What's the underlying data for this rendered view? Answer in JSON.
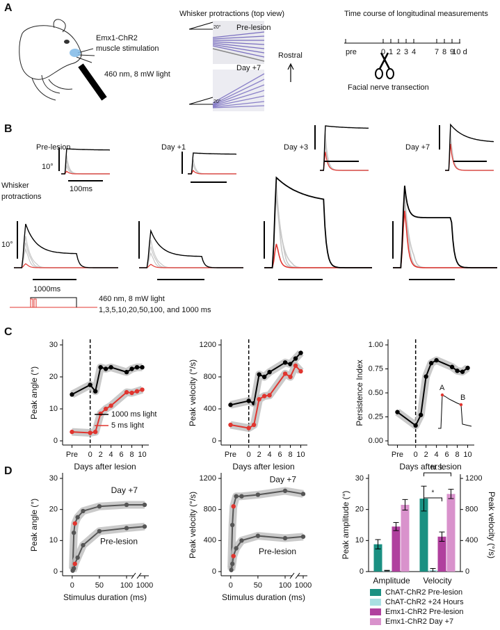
{
  "panel_labels": [
    "A",
    "B",
    "C",
    "D"
  ],
  "panel_a": {
    "mouse": {
      "lines": [
        "Emx1-ChR2",
        "muscle stimulation"
      ],
      "light": "460 nm, 8 mW light"
    },
    "whiskers": {
      "title": "Whisker protractions (top view)",
      "images": [
        "Pre-lesion",
        "Day +7"
      ],
      "angle": "20°",
      "direction": "Rostral"
    },
    "timeline": {
      "title": "Time course of longitudinal measurements",
      "ticks": [
        "pre",
        "0",
        "1",
        "2",
        "3",
        "4",
        "7",
        "8",
        "9",
        "10 d"
      ],
      "event": "Facial nerve transection"
    }
  },
  "panel_b": {
    "conditions": [
      "Pre-lesion",
      "Day +1",
      "Day +3",
      "Day +7"
    ],
    "inset_scale": {
      "angle": "10°",
      "time": "100ms"
    },
    "row_label": [
      "Whisker",
      "protractions"
    ],
    "main_scale": {
      "angle": "10°",
      "time": "1000ms"
    },
    "stimulus": [
      "460 nm, 8 mW light",
      "1,3,5,10,20,50,100, and 1000 ms"
    ]
  },
  "chart_data": [
    {
      "type": "line",
      "x_label": "Days after lesion",
      "y_label": "Peak angle (°)",
      "x": [
        -3.5,
        0,
        1,
        2,
        3,
        4,
        7,
        8,
        9,
        10
      ],
      "xlim": [
        -4.5,
        11
      ],
      "xticks": [
        {
          "value": -3.5,
          "label": "Pre"
        },
        0,
        2,
        4,
        6,
        8,
        10
      ],
      "ylim": [
        0,
        30
      ],
      "yticks": [
        0,
        10,
        20,
        30
      ],
      "vline": 0,
      "band_color": "#bdbdbd",
      "legend": "lower right",
      "series": [
        {
          "name": "1000 ms light",
          "color": "#000000",
          "values": [
            14.5,
            17.5,
            15.5,
            23,
            22.5,
            23,
            21.5,
            22.5,
            23,
            23
          ]
        },
        {
          "name": "5 ms light",
          "color": "#e0352f",
          "values": [
            2.8,
            2.5,
            2.8,
            8.5,
            10,
            11,
            15.2,
            15,
            15.5,
            16
          ]
        }
      ]
    },
    {
      "type": "line",
      "x_label": "Days after lesion",
      "y_label": "Peak velocity (°/s)",
      "x": [
        -3.5,
        0,
        1,
        2,
        3,
        4,
        7,
        8,
        9,
        10
      ],
      "xlim": [
        -4.5,
        11
      ],
      "xticks": [
        {
          "value": -3.5,
          "label": "Pre"
        },
        0,
        2,
        4,
        6,
        8,
        10
      ],
      "ylim": [
        0,
        1200
      ],
      "yticks": [
        0,
        400,
        800,
        1200
      ],
      "vline": 0,
      "band_color": "#bdbdbd",
      "series": [
        {
          "name": "1000 ms light",
          "color": "#000000",
          "values": [
            450,
            500,
            470,
            830,
            800,
            860,
            980,
            960,
            1030,
            1100
          ]
        },
        {
          "name": "5 ms light",
          "color": "#e0352f",
          "values": [
            200,
            160,
            200,
            520,
            560,
            570,
            840,
            800,
            940,
            870
          ]
        }
      ]
    },
    {
      "type": "line",
      "x_label": "Days after lesion",
      "y_label": "Persistence Index",
      "x": [
        -3.5,
        0,
        1,
        2,
        3,
        4,
        7,
        8,
        9,
        10
      ],
      "xlim": [
        -4.5,
        11
      ],
      "xticks": [
        {
          "value": -3.5,
          "label": "Pre"
        },
        0,
        2,
        4,
        6,
        8,
        10
      ],
      "ylim": [
        0,
        1
      ],
      "yticks": [
        {
          "value": 0,
          "label": "0.00"
        },
        {
          "value": 0.25,
          "label": "0.25"
        },
        {
          "value": 0.5,
          "label": "0.50"
        },
        {
          "value": 0.75,
          "label": "0.75"
        },
        {
          "value": 1,
          "label": "1.00"
        }
      ],
      "vline": 0,
      "band_color": "#bdbdbd",
      "inset_labels": [
        "A",
        "B"
      ],
      "series": [
        {
          "color": "#000000",
          "values": [
            0.3,
            0.16,
            0.27,
            0.67,
            0.81,
            0.84,
            0.77,
            0.73,
            0.72,
            0.76
          ]
        }
      ]
    },
    {
      "type": "line",
      "x_label": "Stimulus duration (ms)",
      "y_label": "Peak angle (°)",
      "x": [
        1,
        3,
        5,
        10,
        20,
        50,
        100,
        1000
      ],
      "xlim": [
        -10,
        1000
      ],
      "axis_break": true,
      "xticks": [
        0,
        50,
        100,
        1000
      ],
      "ylim": [
        0,
        30
      ],
      "yticks": [
        0,
        10,
        20,
        30
      ],
      "band_color": "#bdbdbd",
      "legend": "inline",
      "highlight": {
        "x": 5,
        "color": "#e0352f"
      },
      "series": [
        {
          "name": "Day +7",
          "color": "#555555",
          "values": [
            1,
            12.5,
            15.5,
            17.5,
            19.5,
            21,
            21.5,
            21.5
          ]
        },
        {
          "name": "Pre-lesion",
          "color": "#555555",
          "values": [
            0.3,
            1,
            2.5,
            4.5,
            8.5,
            13,
            14,
            14.5
          ]
        }
      ]
    },
    {
      "type": "line",
      "x_label": "Stimulus duration (ms)",
      "y_label": "Peak velocity (°/s)",
      "x": [
        1,
        3,
        5,
        10,
        20,
        50,
        100,
        1000
      ],
      "xlim": [
        -10,
        1000
      ],
      "axis_break": true,
      "xticks": [
        0,
        50,
        100,
        1000
      ],
      "ylim": [
        0,
        1200
      ],
      "yticks": [
        0,
        400,
        800,
        1200
      ],
      "band_color": "#bdbdbd",
      "legend": "inline",
      "highlight": {
        "x": 5,
        "color": "#e0352f"
      },
      "series": [
        {
          "name": "Day +7",
          "color": "#555555",
          "values": [
            50,
            600,
            840,
            970,
            970,
            990,
            1040,
            1000
          ]
        },
        {
          "name": "Pre-lesion",
          "color": "#555555",
          "values": [
            20,
            100,
            200,
            300,
            400,
            460,
            430,
            450
          ]
        }
      ]
    },
    {
      "type": "bar",
      "categories": [
        "Amplitude",
        "Velocity"
      ],
      "category_axes": [
        "y",
        "y2"
      ],
      "y_label": "Peak amplitude (°)",
      "y2_label": "Peak velocity (°/s)",
      "ylim": [
        0,
        30
      ],
      "yticks": [
        0,
        10,
        20,
        30
      ],
      "y2lim": [
        0,
        1200
      ],
      "y2ticks": [
        0,
        400,
        800,
        1200
      ],
      "legend": "below",
      "annotations": [
        "*",
        "N.S."
      ],
      "series": [
        {
          "name": "ChAT-ChR2 Pre-lesion",
          "color": "#1a9082",
          "values": [
            8.8,
            940
          ],
          "errors": [
            1.5,
            160
          ]
        },
        {
          "name": "ChAT-ChR2 +24 Hours",
          "color": "#a9dfe2",
          "values": [
            0.3,
            20
          ],
          "errors": [
            0.1,
            20
          ]
        },
        {
          "name": "Emx1-ChR2 Pre-lesion",
          "color": "#b0409e",
          "values": [
            14.5,
            450
          ],
          "errors": [
            1.3,
            60
          ]
        },
        {
          "name": "Emx1-ChR2 Day +7",
          "color": "#d992cc",
          "values": [
            21.5,
            1000
          ],
          "errors": [
            1.7,
            60
          ]
        }
      ]
    }
  ]
}
